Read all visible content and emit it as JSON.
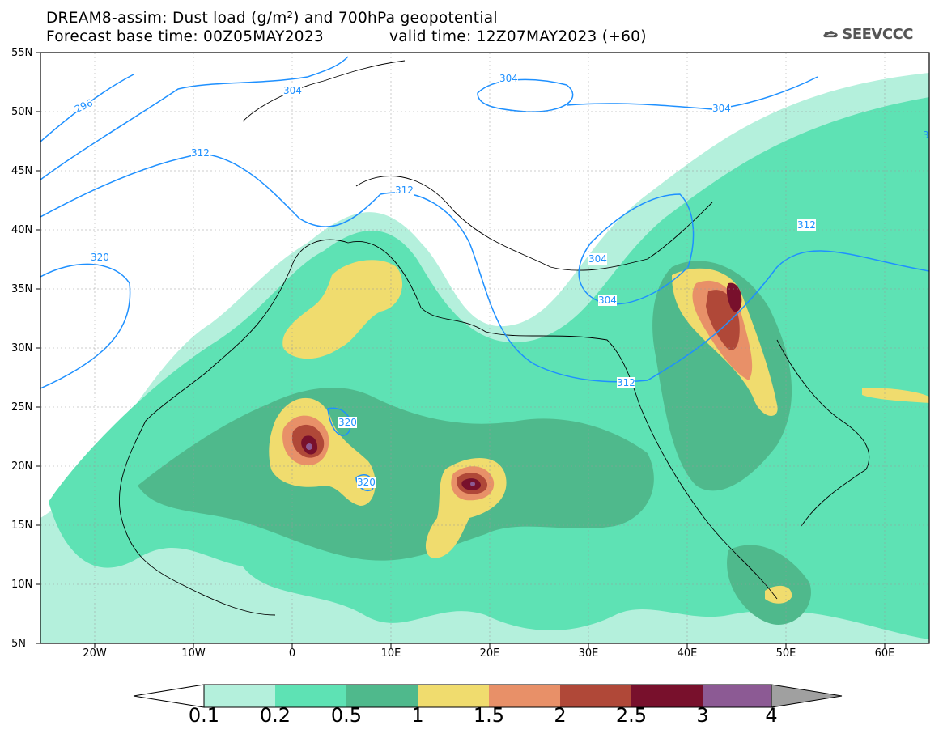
{
  "header": {
    "title_line1": "DREAM8-assim: Dust load (g/m²) and 700hPa geopotential",
    "title_line2": "Forecast base time: 00Z05MAY2023",
    "valid_time": "valid time: 12Z07MAY2023 (+60)",
    "logo_text": "SEEVCCC"
  },
  "map": {
    "extent": {
      "lon_min": -25,
      "lon_max": 65,
      "lat_min": 5,
      "lat_max": 55
    },
    "lat_labels": [
      "55N",
      "50N",
      "45N",
      "40N",
      "35N",
      "30N",
      "25N",
      "20N",
      "15N",
      "10N",
      "5N"
    ],
    "lon_labels": [
      "20W",
      "10W",
      "0",
      "10E",
      "20E",
      "30E",
      "40E",
      "50E",
      "60E"
    ],
    "contour_labels": [
      "296",
      "304",
      "304",
      "304",
      "312",
      "312",
      "312",
      "312",
      "320",
      "320",
      "320",
      "304",
      "304",
      "3"
    ],
    "contour_color": "#1e90ff"
  },
  "colorbar": {
    "labels": [
      "0.1",
      "0.2",
      "0.5",
      "1",
      "1.5",
      "2",
      "2.5",
      "3",
      "4"
    ],
    "colors": [
      "#b4f0dc",
      "#5ee2b4",
      "#4fb98c",
      "#f0dc6e",
      "#e89068",
      "#b04838",
      "#78102c",
      "#8c5a94",
      "#a0a0a0"
    ]
  }
}
